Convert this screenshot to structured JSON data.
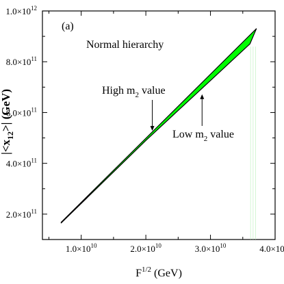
{
  "chart_data": {
    "type": "area",
    "panel_label": "(a)",
    "title": "",
    "annotation_title": "Normal hierarchy",
    "xlabel": {
      "base": "F",
      "sup": "1/2",
      "unit": " (GeV)"
    },
    "ylabel": {
      "pre": "|<x",
      "sub": "12",
      "post": ">| (GeV)"
    },
    "xlim": [
      4000000000.0,
      40000000000.0
    ],
    "ylim": [
      100000000000.0,
      1000000000000.0
    ],
    "x_ticks": [
      {
        "value": 10000000000.0,
        "mant": "1.0×10",
        "exp": "10"
      },
      {
        "value": 20000000000.0,
        "mant": "2.0×10",
        "exp": "10"
      },
      {
        "value": 30000000000.0,
        "mant": "3.0×10",
        "exp": "10"
      },
      {
        "value": 40000000000.0,
        "mant": "4.0×10",
        "exp": "10"
      }
    ],
    "y_ticks": [
      {
        "value": 200000000000.0,
        "mant": "2.0×10",
        "exp": "11"
      },
      {
        "value": 400000000000.0,
        "mant": "4.0×10",
        "exp": "11"
      },
      {
        "value": 600000000000.0,
        "mant": "6.0×10",
        "exp": "11"
      },
      {
        "value": 800000000000.0,
        "mant": "8.0×10",
        "exp": "11"
      },
      {
        "value": 1000000000000.0,
        "mant": "1.0×10",
        "exp": "12"
      }
    ],
    "series": [
      {
        "color": "#00ff00",
        "upper": [
          [
            6900000000.0,
            168000000000.0
          ],
          [
            37100000000.0,
            930000000000.0
          ]
        ],
        "lower": [
          [
            6900000000.0,
            165000000000.0
          ],
          [
            20000000000.0,
            490000000000.0
          ],
          [
            36100000000.0,
            870000000000.0
          ],
          [
            37100000000.0,
            930000000000.0
          ]
        ]
      }
    ],
    "annotations": [
      {
        "text": "High m",
        "sub": "2",
        "post": " value",
        "target": [
          21000000000.0,
          520000000000.0
        ]
      },
      {
        "text": "Low m",
        "sub": "2",
        "post": " value",
        "target": [
          28700000000.0,
          680000000000.0
        ]
      }
    ],
    "grid": false
  }
}
